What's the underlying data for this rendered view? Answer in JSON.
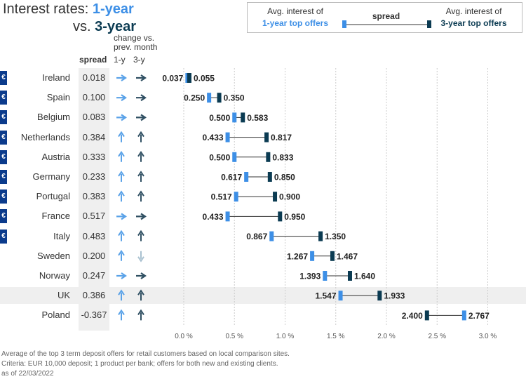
{
  "title": {
    "line1_prefix": "Interest rates: ",
    "line1_highlight": "1-year",
    "line2_prefix": "vs. ",
    "line2_highlight": "3-year"
  },
  "legend": {
    "left_line1": "Avg. interest of",
    "left_line2": "1-year top offers",
    "middle": "spread",
    "right_line1": "Avg. interest of",
    "right_line2": "3-year top offers"
  },
  "columns": {
    "spread": "spread",
    "change_line1": "change vs.",
    "change_line2": "prev. month",
    "change_1y": "1-y",
    "change_3y": "3-y"
  },
  "euro_symbol": "€",
  "footer": {
    "line1": "Average of the top 3 term deposit offers for retail customers based on local comparison sites.",
    "line2": "Criteria: EUR 10,000 deposit; 1 product per bank; offers for both new and existing clients.",
    "line3": "as of 22/03/2022"
  },
  "colors": {
    "one_year": "#3d8fe6",
    "three_year": "#0b3b52",
    "arrow_light": "#5aa2e8",
    "arrow_dark": "#2f4f62",
    "arrow_down": "#a9c1d0",
    "euro_badge": "#0b3b8c",
    "highlight_row": "#efefef"
  },
  "chart_data": {
    "type": "dumbbell",
    "xlim": [
      0,
      3.1
    ],
    "x_ticks": [
      "0.0 %",
      "0.5 %",
      "1.0 %",
      "1.5 %",
      "2.0 %",
      "2.5 %",
      "3.0 %"
    ],
    "x_tick_values": [
      0,
      0.5,
      1.0,
      1.5,
      2.0,
      2.5,
      3.0
    ],
    "grid": true,
    "highlight": "UK",
    "rows": [
      {
        "country": "Ireland",
        "euro": true,
        "spread": "0.018",
        "one_year": 0.037,
        "three_year": 0.055,
        "one_year_label": "0.037",
        "three_year_label": "0.055",
        "change_1y": "flat",
        "change_3y": "flat"
      },
      {
        "country": "Spain",
        "euro": true,
        "spread": "0.100",
        "one_year": 0.25,
        "three_year": 0.35,
        "one_year_label": "0.250",
        "three_year_label": "0.350",
        "change_1y": "flat",
        "change_3y": "flat"
      },
      {
        "country": "Belgium",
        "euro": true,
        "spread": "0.083",
        "one_year": 0.5,
        "three_year": 0.583,
        "one_year_label": "0.500",
        "three_year_label": "0.583",
        "change_1y": "flat",
        "change_3y": "flat"
      },
      {
        "country": "Netherlands",
        "euro": true,
        "spread": "0.384",
        "one_year": 0.433,
        "three_year": 0.817,
        "one_year_label": "0.433",
        "three_year_label": "0.817",
        "change_1y": "up",
        "change_3y": "up"
      },
      {
        "country": "Austria",
        "euro": true,
        "spread": "0.333",
        "one_year": 0.5,
        "three_year": 0.833,
        "one_year_label": "0.500",
        "three_year_label": "0.833",
        "change_1y": "up",
        "change_3y": "up"
      },
      {
        "country": "Germany",
        "euro": true,
        "spread": "0.233",
        "one_year": 0.617,
        "three_year": 0.85,
        "one_year_label": "0.617",
        "three_year_label": "0.850",
        "change_1y": "up",
        "change_3y": "up"
      },
      {
        "country": "Portugal",
        "euro": true,
        "spread": "0.383",
        "one_year": 0.517,
        "three_year": 0.9,
        "one_year_label": "0.517",
        "three_year_label": "0.900",
        "change_1y": "up",
        "change_3y": "up"
      },
      {
        "country": "France",
        "euro": true,
        "spread": "0.517",
        "one_year": 0.433,
        "three_year": 0.95,
        "one_year_label": "0.433",
        "three_year_label": "0.950",
        "change_1y": "flat",
        "change_3y": "flat"
      },
      {
        "country": "Italy",
        "euro": true,
        "spread": "0.483",
        "one_year": 0.867,
        "three_year": 1.35,
        "one_year_label": "0.867",
        "three_year_label": "1.350",
        "change_1y": "up",
        "change_3y": "up"
      },
      {
        "country": "Sweden",
        "euro": false,
        "spread": "0.200",
        "one_year": 1.267,
        "three_year": 1.467,
        "one_year_label": "1.267",
        "three_year_label": "1.467",
        "change_1y": "up",
        "change_3y": "down"
      },
      {
        "country": "Norway",
        "euro": false,
        "spread": "0.247",
        "one_year": 1.393,
        "three_year": 1.64,
        "one_year_label": "1.393",
        "three_year_label": "1.640",
        "change_1y": "flat",
        "change_3y": "flat"
      },
      {
        "country": "UK",
        "euro": false,
        "spread": "0.386",
        "one_year": 1.547,
        "three_year": 1.933,
        "one_year_label": "1.547",
        "three_year_label": "1.933",
        "change_1y": "up",
        "change_3y": "up"
      },
      {
        "country": "Poland",
        "euro": false,
        "spread": "-0.367",
        "one_year": 2.767,
        "three_year": 2.4,
        "one_year_label": "2.767",
        "three_year_label": "2.400",
        "change_1y": "up",
        "change_3y": "up"
      }
    ]
  }
}
